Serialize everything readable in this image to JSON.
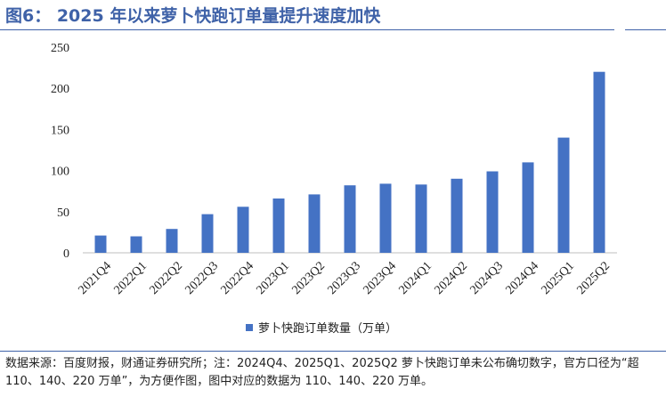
{
  "figure": {
    "title": "图6： 2025 年以来萝卜快跑订单量提升速度加快",
    "source": "数据来源：百度财报，财通证券研究所；注：2024Q4、2025Q1、2025Q2 萝卜快跑订单未公布确切数字，官方口径为“超 110、140、220 万单”，为方便作图，图中对应的数据为 110、140、220 万单。"
  },
  "colors": {
    "title": "#3f62a8",
    "bar": "#4472c4",
    "axis": "#bfbfbf",
    "text": "#222222"
  },
  "chart_data": {
    "type": "bar",
    "categories": [
      "2021Q4",
      "2022Q1",
      "2022Q2",
      "2022Q3",
      "2022Q4",
      "2023Q1",
      "2023Q2",
      "2023Q3",
      "2023Q4",
      "2024Q1",
      "2024Q2",
      "2024Q3",
      "2024Q4",
      "2025Q1",
      "2025Q2"
    ],
    "series": [
      {
        "name": "萝卜快跑订单数量（万单）",
        "values": [
          21,
          20,
          29,
          47,
          56,
          66,
          71,
          82,
          84,
          83,
          90,
          99,
          110,
          140,
          220
        ]
      }
    ],
    "ylim": [
      0,
      250
    ],
    "yticks": [
      0,
      50,
      100,
      150,
      200,
      250
    ],
    "grid": false,
    "legend": "bottom",
    "xlabel": "",
    "ylabel": ""
  }
}
